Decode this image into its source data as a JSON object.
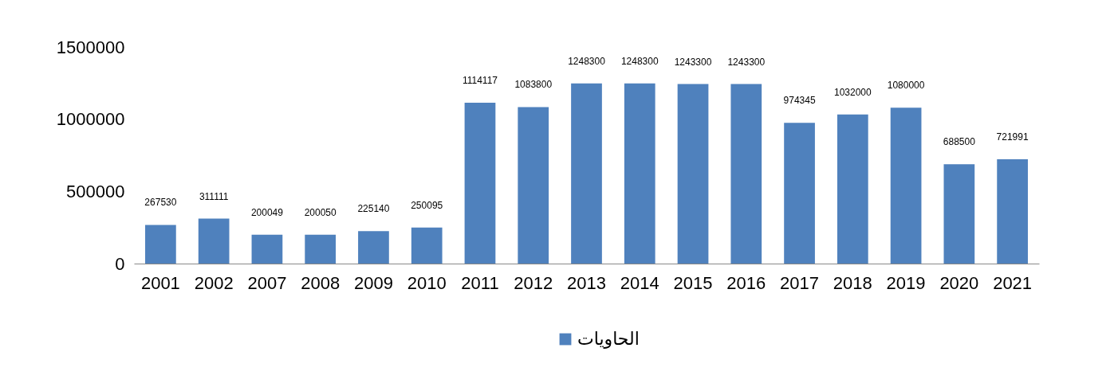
{
  "chart_data": {
    "type": "bar",
    "categories": [
      "2001",
      "2002",
      "2007",
      "2008",
      "2009",
      "2010",
      "2011",
      "2012",
      "2013",
      "2014",
      "2015",
      "2016",
      "2017",
      "2018",
      "2019",
      "2020",
      "2021"
    ],
    "series": [
      {
        "name": "الحاويات",
        "color": "#4f81bd",
        "values": [
          267530,
          311111,
          200049,
          200050,
          225140,
          250095,
          1114117,
          1083800,
          1248300,
          1248300,
          1243300,
          1243300,
          974345,
          1032000,
          1080000,
          688500,
          721991
        ]
      }
    ],
    "ylim": [
      0,
      1500000
    ],
    "yticks": [
      0,
      500000,
      1000000,
      1500000
    ],
    "data_labels": true,
    "legend": "bottom",
    "grid": false
  }
}
